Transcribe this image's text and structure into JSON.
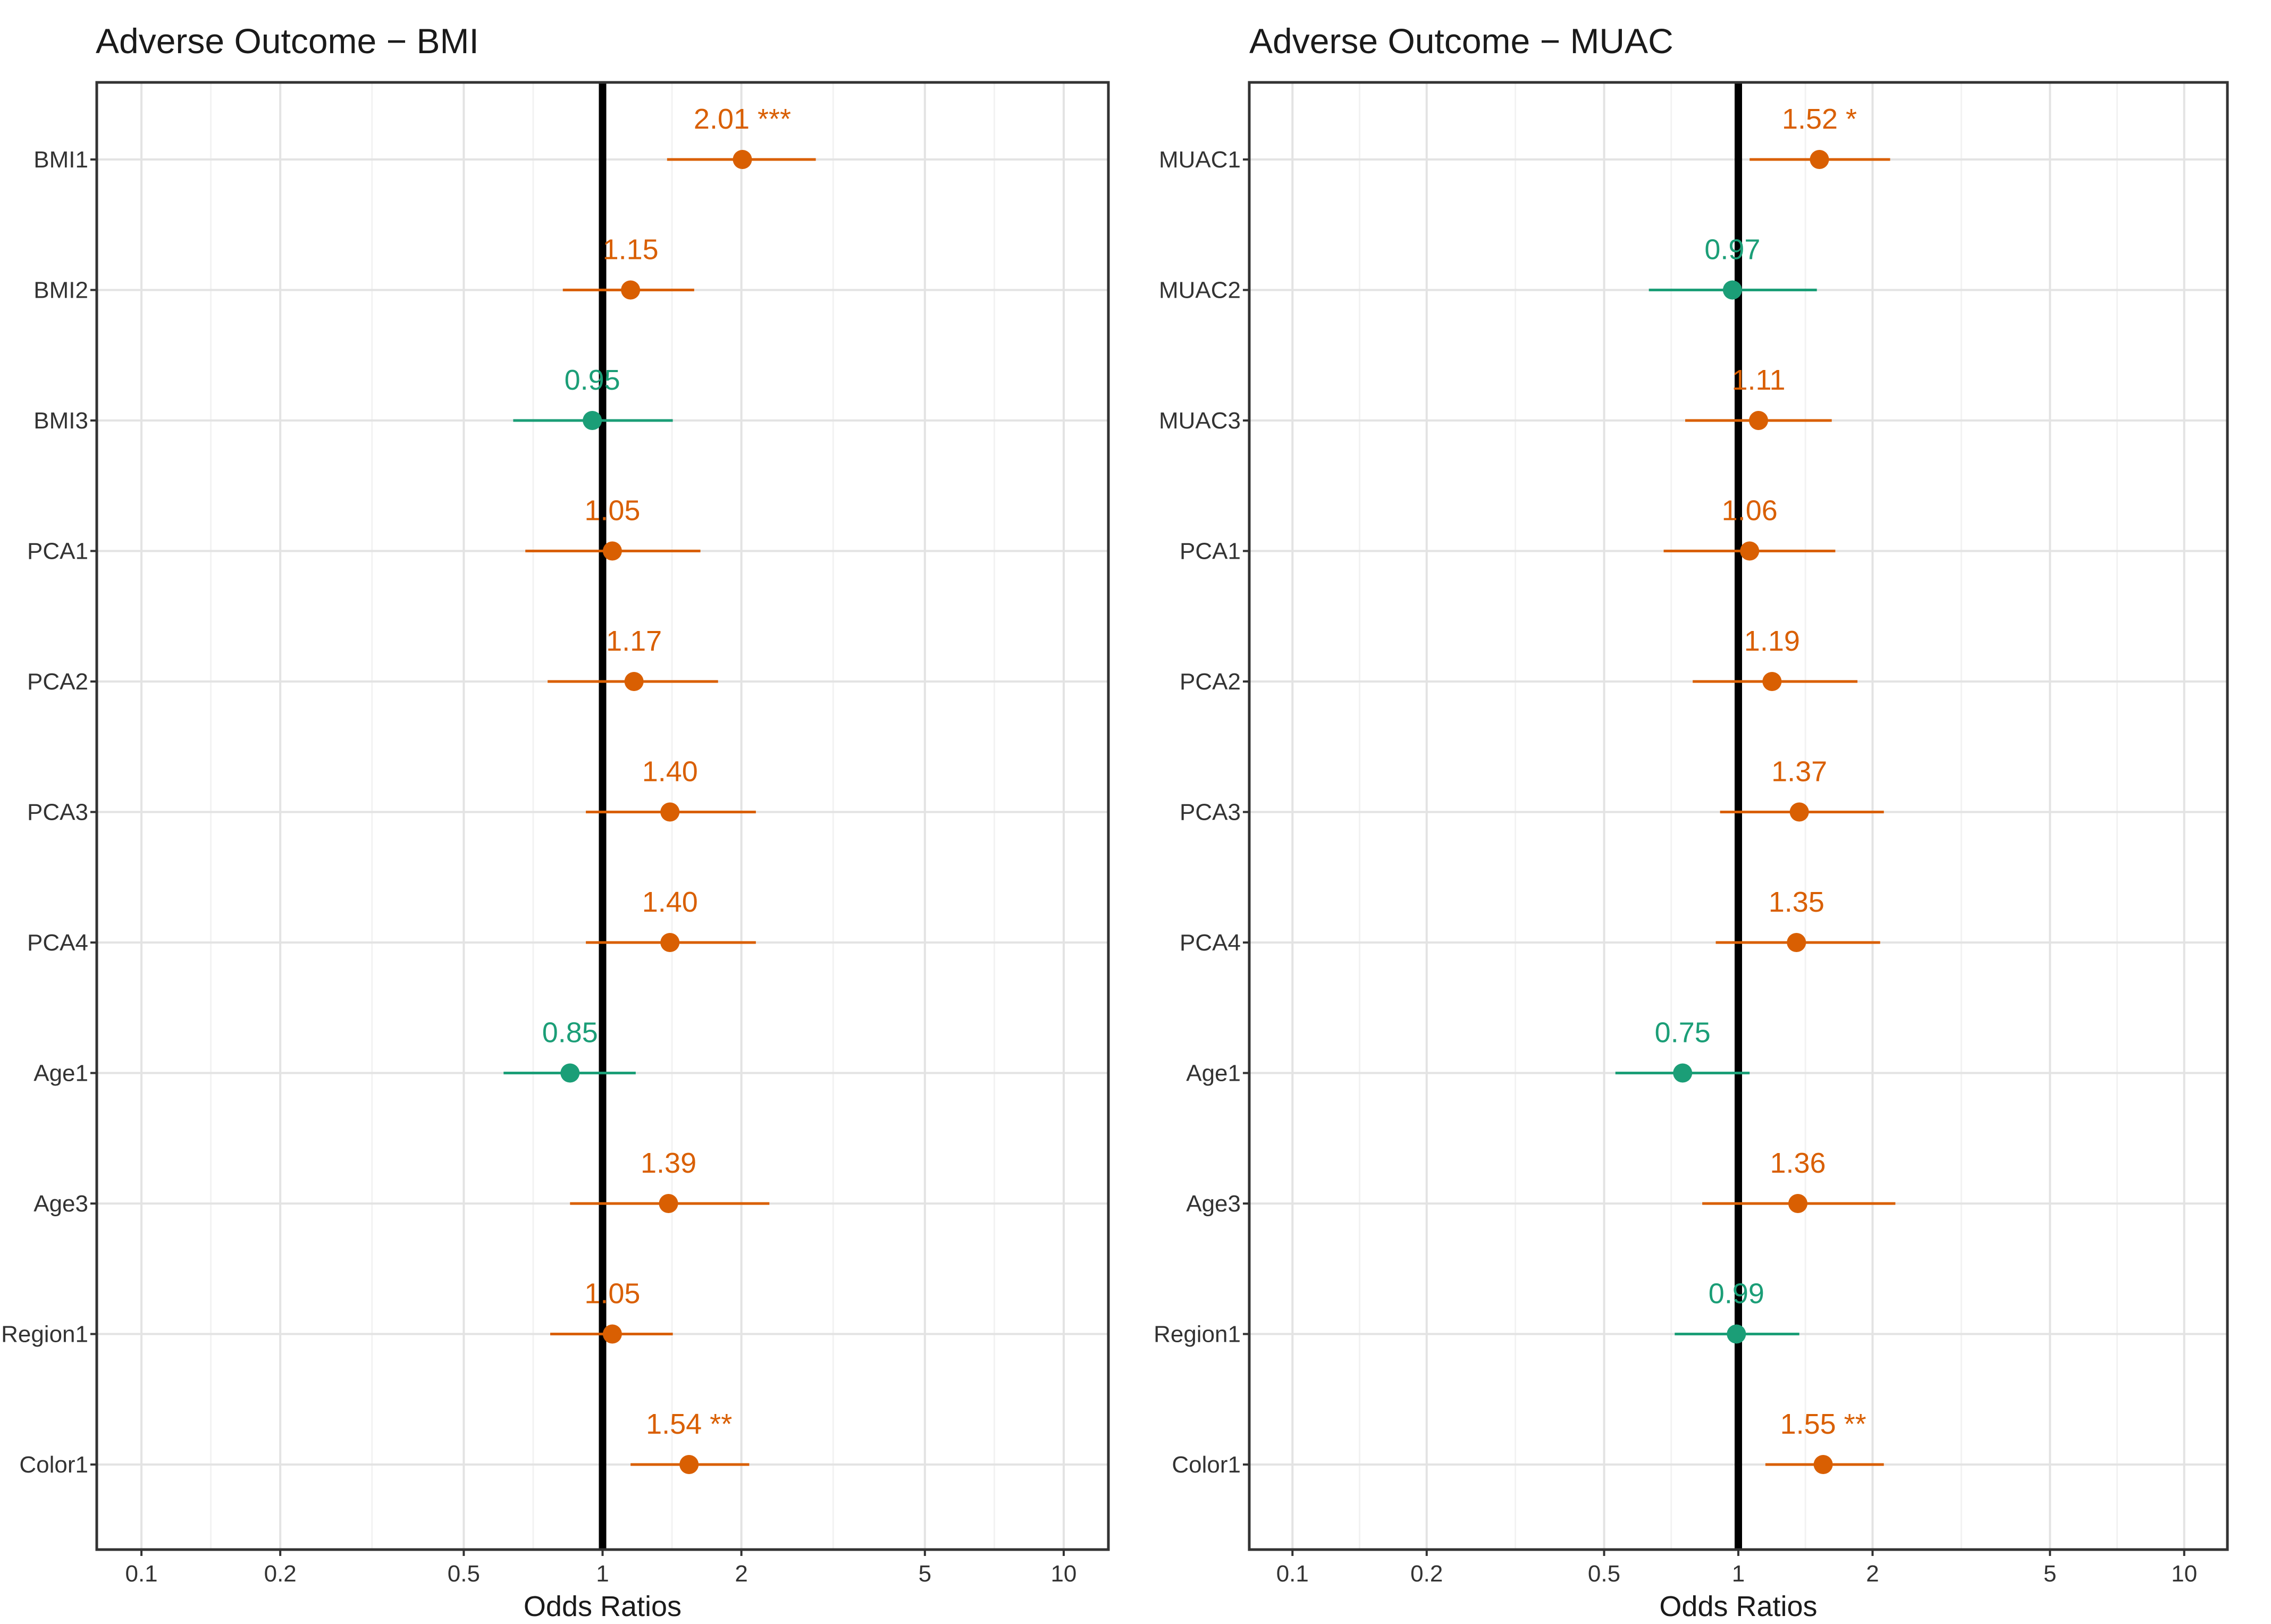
{
  "chart_data": [
    {
      "type": "forest",
      "title": "Adverse Outcome − BMI",
      "xlabel": "Odds Ratios",
      "x_scale": "log10",
      "xlim": [
        0.08,
        12.5
      ],
      "x_ticks": [
        0.1,
        0.2,
        0.5,
        1,
        2,
        5,
        10
      ],
      "x_tick_labels": [
        "0.1",
        "0.2",
        "0.5",
        "1",
        "2",
        "5",
        "10"
      ],
      "reference_line": 1,
      "grid": true,
      "colors": {
        "above_one": "#d95f02",
        "below_one": "#1b9e77"
      },
      "rows": [
        {
          "term": "BMI1",
          "estimate": 2.01,
          "ci_low": 1.38,
          "ci_high": 2.9,
          "label": "2.01 ***"
        },
        {
          "term": "BMI2",
          "estimate": 1.15,
          "ci_low": 0.82,
          "ci_high": 1.58,
          "label": "1.15"
        },
        {
          "term": "BMI3",
          "estimate": 0.95,
          "ci_low": 0.64,
          "ci_high": 1.42,
          "label": "0.95"
        },
        {
          "term": "PCA1",
          "estimate": 1.05,
          "ci_low": 0.68,
          "ci_high": 1.63,
          "label": "1.05"
        },
        {
          "term": "PCA2",
          "estimate": 1.17,
          "ci_low": 0.76,
          "ci_high": 1.78,
          "label": "1.17"
        },
        {
          "term": "PCA3",
          "estimate": 1.4,
          "ci_low": 0.92,
          "ci_high": 2.15,
          "label": "1.40"
        },
        {
          "term": "PCA4",
          "estimate": 1.4,
          "ci_low": 0.92,
          "ci_high": 2.15,
          "label": "1.40"
        },
        {
          "term": "Age1",
          "estimate": 0.85,
          "ci_low": 0.61,
          "ci_high": 1.18,
          "label": "0.85"
        },
        {
          "term": "Age3",
          "estimate": 1.39,
          "ci_low": 0.85,
          "ci_high": 2.3,
          "label": "1.39"
        },
        {
          "term": "Region1",
          "estimate": 1.05,
          "ci_low": 0.77,
          "ci_high": 1.42,
          "label": "1.05"
        },
        {
          "term": "Color1",
          "estimate": 1.54,
          "ci_low": 1.15,
          "ci_high": 2.08,
          "label": "1.54 **"
        }
      ]
    },
    {
      "type": "forest",
      "title": "Adverse Outcome − MUAC",
      "xlabel": "Odds Ratios",
      "x_scale": "log10",
      "xlim": [
        0.08,
        12.5
      ],
      "x_ticks": [
        0.1,
        0.2,
        0.5,
        1,
        2,
        5,
        10
      ],
      "x_tick_labels": [
        "0.1",
        "0.2",
        "0.5",
        "1",
        "2",
        "5",
        "10"
      ],
      "reference_line": 1,
      "grid": true,
      "colors": {
        "above_one": "#d95f02",
        "below_one": "#1b9e77"
      },
      "rows": [
        {
          "term": "MUAC1",
          "estimate": 1.52,
          "ci_low": 1.06,
          "ci_high": 2.19,
          "label": "1.52 *"
        },
        {
          "term": "MUAC2",
          "estimate": 0.97,
          "ci_low": 0.63,
          "ci_high": 1.5,
          "label": "0.97"
        },
        {
          "term": "MUAC3",
          "estimate": 1.11,
          "ci_low": 0.76,
          "ci_high": 1.62,
          "label": "1.11"
        },
        {
          "term": "PCA1",
          "estimate": 1.06,
          "ci_low": 0.68,
          "ci_high": 1.65,
          "label": "1.06"
        },
        {
          "term": "PCA2",
          "estimate": 1.19,
          "ci_low": 0.79,
          "ci_high": 1.85,
          "label": "1.19"
        },
        {
          "term": "PCA3",
          "estimate": 1.37,
          "ci_low": 0.91,
          "ci_high": 2.12,
          "label": "1.37"
        },
        {
          "term": "PCA4",
          "estimate": 1.35,
          "ci_low": 0.89,
          "ci_high": 2.08,
          "label": "1.35"
        },
        {
          "term": "Age1",
          "estimate": 0.75,
          "ci_low": 0.53,
          "ci_high": 1.06,
          "label": "0.75"
        },
        {
          "term": "Age3",
          "estimate": 1.36,
          "ci_low": 0.83,
          "ci_high": 2.25,
          "label": "1.36"
        },
        {
          "term": "Region1",
          "estimate": 0.99,
          "ci_low": 0.72,
          "ci_high": 1.37,
          "label": "0.99"
        },
        {
          "term": "Color1",
          "estimate": 1.55,
          "ci_low": 1.15,
          "ci_high": 2.12,
          "label": "1.55 **"
        }
      ]
    }
  ]
}
